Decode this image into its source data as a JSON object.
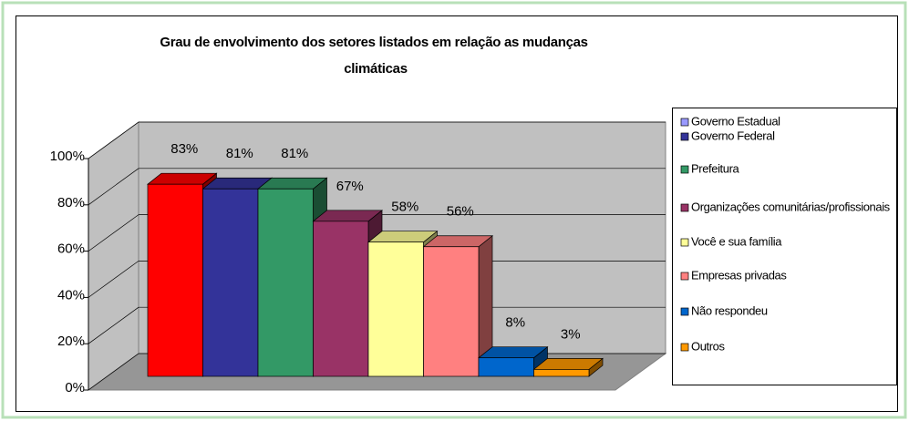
{
  "chart_data": {
    "type": "bar3d",
    "title": "Grau de envolvimento dos setores listados em relação as mudanças climáticas",
    "ylim": [
      0,
      100
    ],
    "yticks": [
      {
        "value": 0,
        "label": "0%"
      },
      {
        "value": 20,
        "label": "20%"
      },
      {
        "value": 40,
        "label": "40%"
      },
      {
        "value": 60,
        "label": "60%"
      },
      {
        "value": 80,
        "label": "80%"
      },
      {
        "value": 100,
        "label": "100%"
      }
    ],
    "grid": true,
    "legend": "right",
    "series": [
      {
        "name": "Governo Estadual",
        "color": "#ff0000",
        "legend_color": "#9999ff",
        "values": [
          83
        ],
        "value_labels": [
          "83%"
        ]
      },
      {
        "name": "Governo Federal",
        "color": "#333399",
        "legend_color": "#333399",
        "values": [
          81
        ],
        "value_labels": [
          "81%"
        ]
      },
      {
        "name": "Prefeitura",
        "color": "#339966",
        "legend_color": "#339966",
        "values": [
          81
        ],
        "value_labels": [
          "81%"
        ]
      },
      {
        "name": "Organizações comunitárias/profissionais",
        "color": "#993366",
        "legend_color": "#993366",
        "values": [
          67
        ],
        "value_labels": [
          "67%"
        ]
      },
      {
        "name": "Você e sua família",
        "color": "#ffff99",
        "legend_color": "#ffff99",
        "values": [
          58
        ],
        "value_labels": [
          "58%"
        ]
      },
      {
        "name": "Empresas privadas",
        "color": "#ff8080",
        "legend_color": "#ff8080",
        "values": [
          56
        ],
        "value_labels": [
          "56%"
        ]
      },
      {
        "name": "Não respondeu",
        "color": "#0066cc",
        "legend_color": "#0066cc",
        "values": [
          8
        ],
        "value_labels": [
          "8%"
        ]
      },
      {
        "name": "Outros",
        "color": "#ff9900",
        "legend_color": "#ff9900",
        "values": [
          3
        ],
        "value_labels": [
          "3%"
        ]
      }
    ]
  }
}
